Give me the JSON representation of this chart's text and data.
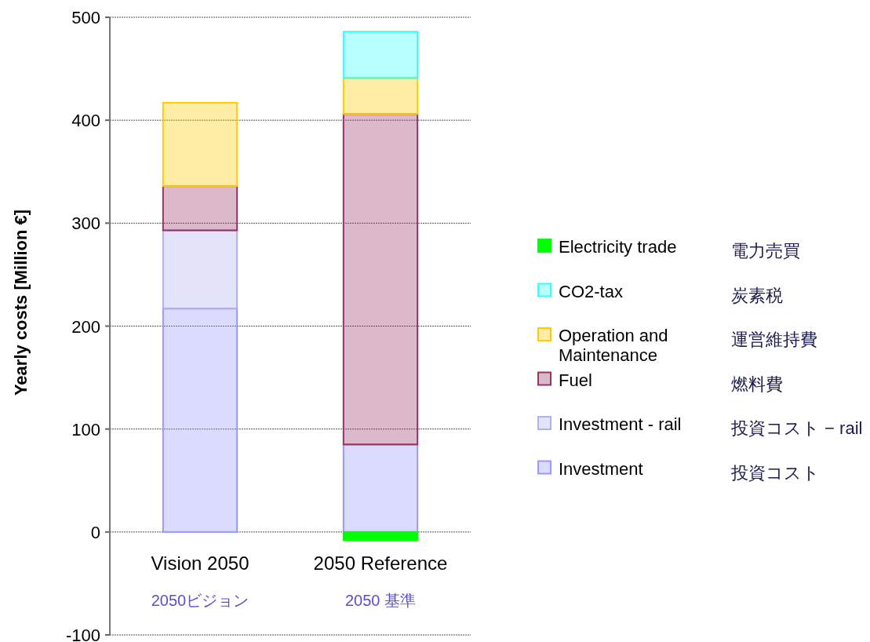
{
  "chart_data": {
    "type": "bar",
    "stacked": true,
    "ylabel": "Yearly costs [Million €]",
    "categories": [
      "Vision 2050",
      "2050 Reference"
    ],
    "ylim": [
      -100,
      500
    ],
    "yticks": [
      -100,
      0,
      100,
      200,
      300,
      400,
      500
    ],
    "grid": "y",
    "legend": "right",
    "series": [
      {
        "name": "Investment",
        "color": "#9999ff",
        "values": [
          217,
          85
        ]
      },
      {
        "name": "Investment - rail",
        "color": "#b0b0ee",
        "values": [
          76,
          0
        ]
      },
      {
        "name": "Fuel",
        "color": "#993366",
        "values": [
          43,
          321
        ]
      },
      {
        "name": "Operation and Maintenance",
        "color": "#ffcc00",
        "values": [
          81,
          35
        ]
      },
      {
        "name": "CO2-tax",
        "color": "#33ffff",
        "values": [
          0,
          45
        ]
      },
      {
        "name": "Electricity trade",
        "color": "#00ff00",
        "values": [
          0,
          -8
        ]
      }
    ],
    "annotations": [
      "2050ビジョン",
      "2050 基準",
      "投資コスト",
      "投資コスト − rail",
      "燃料費",
      "運営維持費",
      "炭素税",
      "電力売買"
    ]
  }
}
